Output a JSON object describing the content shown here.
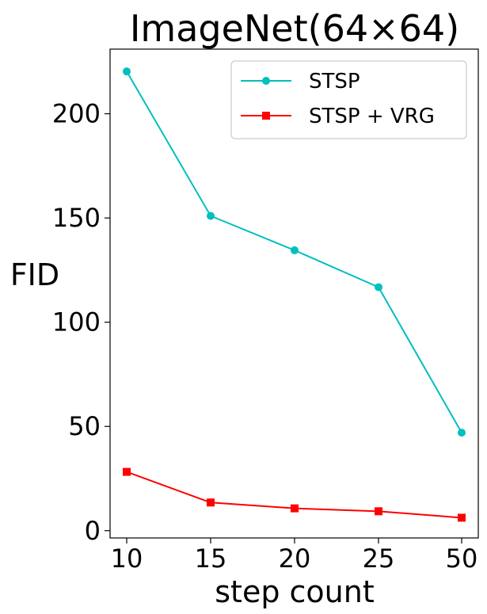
{
  "chart_data": {
    "type": "line",
    "title": "ImageNet(64×64)",
    "xlabel": "step count",
    "ylabel": "FID",
    "categories": [
      "10",
      "15",
      "20",
      "25",
      "50"
    ],
    "y_ticks": [
      0,
      50,
      100,
      150,
      200
    ],
    "ylim": [
      -3.5,
      231
    ],
    "grid": false,
    "legend_position": "top-right",
    "series": [
      {
        "name": "STSP",
        "values": [
          220.3,
          151.0,
          134.5,
          116.8,
          47.0
        ],
        "color": "#00bfbf",
        "marker": "circle"
      },
      {
        "name": "STSP + VRG",
        "values": [
          28.2,
          13.5,
          10.7,
          9.3,
          6.2
        ],
        "color": "#ff0000",
        "marker": "square"
      }
    ]
  }
}
